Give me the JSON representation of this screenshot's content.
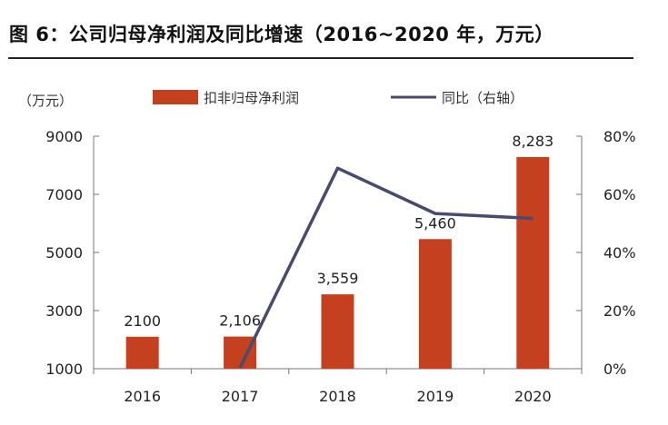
{
  "header": {
    "title": "图 6：公司归母净利润及同比增速（2016~2020 年，万元）"
  },
  "chart_data": {
    "type": "bar",
    "y_unit_label": "（万元）",
    "categories": [
      "2016",
      "2017",
      "2018",
      "2019",
      "2020"
    ],
    "series": [
      {
        "name": "扣非归母净利润",
        "kind": "bar",
        "axis": "left",
        "values": [
          2100,
          2106,
          3559,
          5460,
          8283
        ],
        "value_labels": [
          "2100",
          "2,106",
          "3,559",
          "5,460",
          "8,283"
        ],
        "color": "#c4401f"
      },
      {
        "name": "同比（右轴）",
        "kind": "line",
        "axis": "right",
        "values": [
          null,
          0.3,
          69.0,
          53.4,
          51.7
        ],
        "color": "#4a4a6e"
      }
    ],
    "y_left": {
      "min": 1000,
      "max": 9000,
      "ticks": [
        1000,
        3000,
        5000,
        7000,
        9000
      ],
      "tick_labels": [
        "1000",
        "3000",
        "5000",
        "7000",
        "9000"
      ]
    },
    "y_right": {
      "min": 0,
      "max": 80,
      "ticks": [
        0,
        20,
        40,
        60,
        80
      ],
      "tick_labels": [
        "0%",
        "20%",
        "40%",
        "60%",
        "80%"
      ]
    },
    "grid": false,
    "legend_position": "top"
  }
}
